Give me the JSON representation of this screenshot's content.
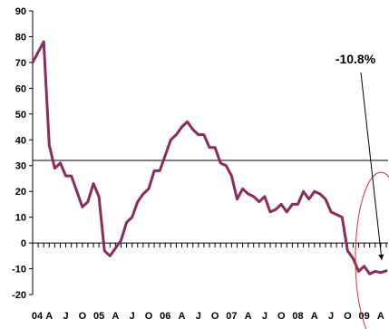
{
  "chart_data": {
    "type": "line",
    "title": "",
    "xlabel": "",
    "ylabel": "",
    "ylim": [
      -20,
      90
    ],
    "y_ticks": [
      -20,
      -10,
      0,
      10,
      20,
      30,
      40,
      50,
      60,
      70,
      80,
      90
    ],
    "x_tick_labels": [
      "04",
      "A",
      "J",
      "O",
      "05",
      "A",
      "J",
      "O",
      "06",
      "A",
      "J",
      "O",
      "07",
      "A",
      "J",
      "O",
      "08",
      "A",
      "J",
      "O",
      "09",
      "A"
    ],
    "reference_line": 32,
    "grid": false,
    "series": [
      {
        "color": "#8b2c5a",
        "values": [
          70,
          74,
          78,
          38,
          29,
          31,
          26,
          26,
          20,
          14,
          16,
          23,
          18,
          -3,
          -5,
          -2,
          1,
          8,
          10,
          16,
          19,
          21,
          28,
          28,
          34,
          40,
          42,
          45,
          47,
          44,
          42,
          42,
          37,
          37,
          31,
          30,
          26,
          17,
          21,
          19,
          18,
          16,
          18,
          12,
          13,
          15,
          12,
          15,
          15,
          20,
          17,
          20,
          19,
          17,
          12,
          11,
          10,
          -3,
          -6,
          -11,
          -9,
          -12,
          -11,
          -11.5,
          -10.8
        ]
      }
    ],
    "annotation": {
      "text": "-10.8%",
      "value": -10.8
    },
    "colors": {
      "series": "#8b2c5a",
      "ellipse": "#e03030",
      "axis": "#000000"
    }
  }
}
